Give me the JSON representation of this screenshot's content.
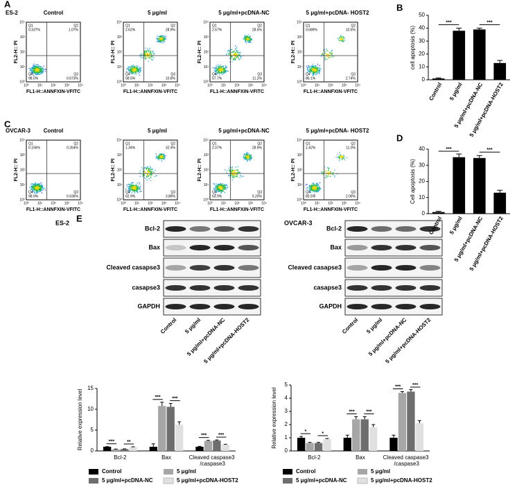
{
  "panel_labels": [
    "A",
    "B",
    "C",
    "D",
    "E"
  ],
  "flow_cytometry": {
    "y_label": "FL2-H:: PI",
    "x_label": "FL1-H::ANNFXIN-VFITC",
    "ticks": [
      "10⁰",
      "10¹",
      "10²",
      "10³",
      "10⁴"
    ],
    "rows": [
      {
        "label": "ES-2",
        "panels": [
          {
            "title": "Control",
            "quadrants": [
              {
                "name": "Q1",
                "value": "0.337%"
              },
              {
                "name": "Q2",
                "value": "1.07%"
              },
              {
                "name": "Q3",
                "value": "0.673%"
              },
              {
                "name": "Q4",
                "value": "98.0%"
              }
            ]
          },
          {
            "title": "5 μg/ml",
            "quadrants": [
              {
                "name": "Q1",
                "value": "2.62%"
              },
              {
                "name": "Q2",
                "value": "28.9%"
              },
              {
                "name": "Q3",
                "value": "10.8%"
              },
              {
                "name": "Q4",
                "value": "58.5%"
              }
            ]
          },
          {
            "title": "5 μg/ml+pcDNA-NC",
            "quadrants": [
              {
                "name": "Q1",
                "value": "2.67%"
              },
              {
                "name": "Q2",
                "value": "28.5%"
              },
              {
                "name": "Q3",
                "value": "11.2%"
              },
              {
                "name": "Q4",
                "value": "57.7%"
              }
            ]
          },
          {
            "title": "5 μg/ml+pcDNA- HOST2",
            "quadrants": [
              {
                "name": "Q1",
                "value": "0.689%"
              },
              {
                "name": "Q2",
                "value": "10.5%"
              },
              {
                "name": "Q3",
                "value": "2.74%"
              },
              {
                "name": "Q4",
                "value": "86.1%"
              }
            ]
          }
        ]
      },
      {
        "label": "OVCAR-3",
        "panels": [
          {
            "title": "Control",
            "quadrants": [
              {
                "name": "Q1",
                "value": "0.156%"
              },
              {
                "name": "Q2",
                "value": "0.264%"
              },
              {
                "name": "Q3",
                "value": "0.636%"
              },
              {
                "name": "Q4",
                "value": "98.9%"
              }
            ]
          },
          {
            "title": "5 μg/ml",
            "quadrants": [
              {
                "name": "Q1",
                "value": "1.34%"
              },
              {
                "name": "Q2",
                "value": "32.9%"
              },
              {
                "name": "Q3",
                "value": "3.89%"
              },
              {
                "name": "Q4",
                "value": "62.9%"
              }
            ]
          },
          {
            "title": "5 μg/ml+pcDNA-NC",
            "quadrants": [
              {
                "name": "Q1",
                "value": "2.07%"
              },
              {
                "name": "Q2",
                "value": "28.9%"
              },
              {
                "name": "Q3",
                "value": "5.20%"
              },
              {
                "name": "Q4",
                "value": "63.9%"
              }
            ]
          },
          {
            "title": "5 μg/ml+pcDNA- HOST2",
            "quadrants": [
              {
                "name": "Q1",
                "value": "1.42%"
              },
              {
                "name": "Q2",
                "value": "11.0%"
              },
              {
                "name": "Q3",
                "value": "2.06%"
              },
              {
                "name": "Q4",
                "value": "85.5%"
              }
            ]
          }
        ]
      }
    ]
  },
  "western_blots": [
    {
      "label": "ES-2",
      "rows": [
        "Bcl-2",
        "Bax",
        "Cleaved casapse3",
        "casapse3",
        "GAPDH"
      ],
      "lanes": [
        "Control",
        "5 μg/ml",
        "5 μg/ml+pcDNA-NC",
        "5 μg/ml+pcDNA-HOST2"
      ]
    },
    {
      "label": "OVCAR-3",
      "rows": [
        "Bcl-2",
        "Bax",
        "Cleaved casapse3",
        "casapse3",
        "GAPDH"
      ],
      "lanes": [
        "Control",
        "5 μg/ml",
        "5 μg/ml+pcDNA-NC",
        "5 μg/ml+pcDNA-HOST2"
      ]
    }
  ],
  "chart_data": [
    {
      "type": "bar",
      "y_label": "cell apoptosis (%)",
      "categories": [
        "Control",
        "5 μg/ml",
        "5 μg/ml+pcDNA-NC",
        "5 μg/ml+pcDNA-HOST2"
      ],
      "values": [
        1,
        38,
        39,
        13
      ],
      "errors": [
        0.5,
        2,
        1,
        2
      ],
      "color": "#000000",
      "ylim": [
        0,
        50
      ],
      "yticks": [
        0,
        10,
        20,
        30,
        40,
        50
      ],
      "annotations": [
        "***",
        "***"
      ]
    },
    {
      "type": "bar",
      "y_label": "Cell apoptosis (%)",
      "categories": [
        "Control",
        "5 μg/ml",
        "5 μg/ml+pcDNA-NC",
        "5 μg/ml+pcDNA-HOST2"
      ],
      "values": [
        1,
        35,
        34.5,
        13
      ],
      "errors": [
        0.5,
        2,
        1.5,
        1.5
      ],
      "color": "#000000",
      "ylim": [
        0,
        40
      ],
      "yticks": [
        0,
        10,
        20,
        30,
        40
      ],
      "annotations": [
        "***",
        "***"
      ]
    },
    {
      "type": "bar",
      "y_label": "Relative expression level",
      "categories": [
        "Bcl-2",
        "Bax",
        "Cleaved caspase3 /caspase3"
      ],
      "ylim": [
        0,
        15
      ],
      "yticks": [
        0,
        5,
        10,
        15
      ],
      "series": [
        {
          "name": "Control",
          "color": "#000000",
          "values": [
            1,
            1,
            1
          ],
          "errors": [
            0.05,
            0.7,
            0.1
          ]
        },
        {
          "name": "5 μg/ml",
          "color": "#a6a6a6",
          "values": [
            0.4,
            10.8,
            2.4
          ],
          "errors": [
            0.05,
            0.9,
            0.15
          ]
        },
        {
          "name": "5 μg/ml+pcDNA-NC",
          "color": "#6e6e6e",
          "values": [
            0.45,
            10.6,
            2.5
          ],
          "errors": [
            0.05,
            0.8,
            0.15
          ]
        },
        {
          "name": "5 μg/ml+pcDNA-HOST2",
          "color": "#e0e0e0",
          "values": [
            0.9,
            6.3,
            1.5
          ],
          "errors": [
            0.1,
            0.7,
            0.1
          ]
        }
      ],
      "annotations": [
        "***",
        "**",
        "***",
        "***",
        "***",
        "***"
      ]
    },
    {
      "type": "bar",
      "y_label": "Relative expression level",
      "categories": [
        "Bcl-2",
        "Bax",
        "Cleaved caspase3 /caspase3"
      ],
      "ylim": [
        0,
        5
      ],
      "yticks": [
        0,
        1,
        2,
        3,
        4,
        5
      ],
      "series": [
        {
          "name": "Control",
          "color": "#000000",
          "values": [
            1,
            1,
            1
          ],
          "errors": [
            0.1,
            0.2,
            0.2
          ]
        },
        {
          "name": "5 μg/ml",
          "color": "#a6a6a6",
          "values": [
            0.6,
            2.4,
            4.4
          ],
          "errors": [
            0.05,
            0.2,
            0.1
          ]
        },
        {
          "name": "5 μg/ml+pcDNA-NC",
          "color": "#6e6e6e",
          "values": [
            0.6,
            2.4,
            4.5
          ],
          "errors": [
            0.05,
            0.2,
            0.15
          ]
        },
        {
          "name": "5 μg/ml+pcDNA-HOST2",
          "color": "#e0e0e0",
          "values": [
            0.9,
            1.8,
            2.1
          ],
          "errors": [
            0.05,
            0.2,
            0.2
          ]
        }
      ],
      "annotations": [
        "*",
        "*",
        "***",
        "***",
        "***",
        "***"
      ]
    }
  ]
}
